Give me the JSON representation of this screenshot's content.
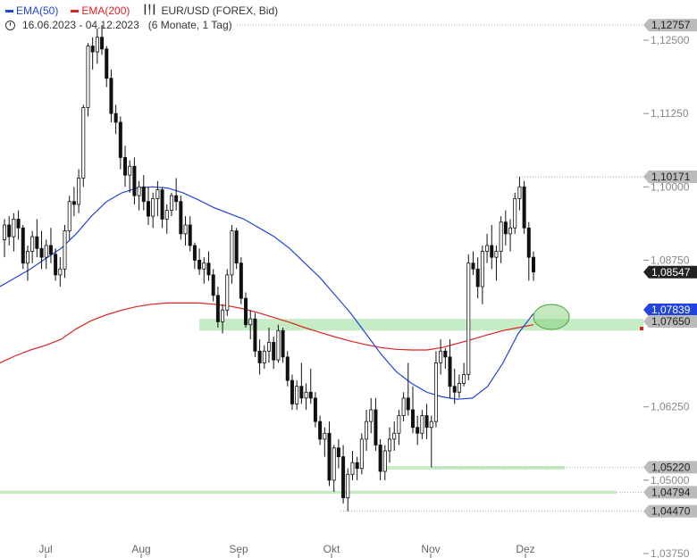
{
  "legend": {
    "ema50_label": "EMA(50)",
    "ema200_label": "EMA(200)",
    "instrument": "EUR/USD (FOREX, Bid)",
    "range": "16.06.2023 - 04.12.2023",
    "period": "(6 Monate, 1 Tag)",
    "instrument_icon": "candlestick-icon",
    "clock_icon": "clock-icon"
  },
  "colors": {
    "ema50": "#2244dd",
    "ema200": "#dd2222",
    "candle": "#111111",
    "zone": "#9ee09e",
    "ellipse": "#7ccf6e",
    "grid": "#999999"
  },
  "chart_data": {
    "type": "candlestick",
    "title": "EUR/USD (FOREX, Bid)",
    "ylim": [
      1.0375,
      1.1285
    ],
    "y_ticks": [
      "1,12500",
      "1,11250",
      "1,10000",
      "1,08750",
      "1,06250",
      "1,05000",
      "1,03750"
    ],
    "x_ticks": [
      "Jul",
      "Aug",
      "Sep",
      "Okt",
      "Nov",
      "Dez"
    ],
    "price_labels": [
      {
        "value": 1.12757,
        "text": "1,12757",
        "style": "gray"
      },
      {
        "value": 1.10171,
        "text": "1,10171",
        "style": "gray"
      },
      {
        "value": 1.08547,
        "text": "1,08547",
        "style": "dark"
      },
      {
        "value": 1.07839,
        "text": "1,07839",
        "style": "blue"
      },
      {
        "value": 1.0765,
        "text": "1,07650",
        "style": "gray"
      },
      {
        "value": 1.0522,
        "text": "1,05220",
        "style": "gray"
      },
      {
        "value": 1.04794,
        "text": "1,04794",
        "style": "gray"
      },
      {
        "value": 1.0447,
        "text": "1,04470",
        "style": "gray"
      }
    ],
    "support_zones": [
      {
        "from": 1.0755,
        "to": 1.0775
      },
      {
        "from": 1.0518,
        "to": 1.0524
      },
      {
        "from": 1.0477,
        "to": 1.0482
      }
    ],
    "ohlc": [
      [
        1.091,
        1.0945,
        1.088,
        1.0935
      ],
      [
        1.0935,
        1.095,
        1.09,
        1.0915
      ],
      [
        1.0915,
        1.0955,
        1.089,
        1.0945
      ],
      [
        1.0945,
        1.096,
        1.091,
        1.093
      ],
      [
        1.093,
        1.0935,
        1.086,
        1.087
      ],
      [
        1.087,
        1.09,
        1.084,
        1.089
      ],
      [
        1.089,
        1.0925,
        1.087,
        1.0915
      ],
      [
        1.0915,
        1.0945,
        1.088,
        1.0895
      ],
      [
        1.0895,
        1.0925,
        1.086,
        1.088
      ],
      [
        1.088,
        1.091,
        1.086,
        1.09
      ],
      [
        1.09,
        1.093,
        1.087,
        1.0885
      ],
      [
        1.0885,
        1.0895,
        1.084,
        1.085
      ],
      [
        1.085,
        1.088,
        1.083,
        1.086
      ],
      [
        1.086,
        1.0935,
        1.0845,
        1.0925
      ],
      [
        1.0925,
        1.0985,
        1.091,
        1.0975
      ],
      [
        1.0975,
        1.1,
        1.095,
        1.097
      ],
      [
        1.097,
        1.103,
        1.0955,
        1.1015
      ],
      [
        1.1015,
        1.114,
        1.1,
        1.1135
      ],
      [
        1.1135,
        1.1245,
        1.112,
        1.124
      ],
      [
        1.124,
        1.1255,
        1.12,
        1.123
      ],
      [
        1.123,
        1.127,
        1.121,
        1.1255
      ],
      [
        1.1255,
        1.1276,
        1.1225,
        1.1235
      ],
      [
        1.1235,
        1.124,
        1.117,
        1.1185
      ],
      [
        1.1185,
        1.12,
        1.111,
        1.1125
      ],
      [
        1.1125,
        1.114,
        1.109,
        1.111
      ],
      [
        1.111,
        1.112,
        1.103,
        1.105
      ],
      [
        1.105,
        1.107,
        1.1,
        1.102
      ],
      [
        1.102,
        1.1045,
        1.099,
        1.1035
      ],
      [
        1.1035,
        1.105,
        1.097,
        1.0985
      ],
      [
        1.0985,
        1.101,
        1.096,
        1.1
      ],
      [
        1.1,
        1.102,
        1.096,
        1.0975
      ],
      [
        1.0975,
        1.1,
        1.0935,
        1.095
      ],
      [
        1.095,
        1.099,
        1.093,
        1.098
      ],
      [
        1.098,
        1.101,
        1.095,
        1.0995
      ],
      [
        1.0995,
        1.1,
        1.093,
        1.0945
      ],
      [
        1.0945,
        1.097,
        1.092,
        1.096
      ],
      [
        1.096,
        1.099,
        1.095,
        1.0985
      ],
      [
        1.0985,
        1.1015,
        1.096,
        1.0975
      ],
      [
        1.0975,
        1.0985,
        1.091,
        1.092
      ],
      [
        1.092,
        1.095,
        1.09,
        1.0935
      ],
      [
        1.0935,
        1.095,
        1.089,
        1.09
      ],
      [
        1.09,
        1.0905,
        1.086,
        1.0875
      ],
      [
        1.0875,
        1.0895,
        1.085,
        1.086
      ],
      [
        1.086,
        1.088,
        1.0835,
        1.087
      ],
      [
        1.087,
        1.089,
        1.084,
        1.085
      ],
      [
        1.085,
        1.086,
        1.0805,
        1.0815
      ],
      [
        1.0815,
        1.083,
        1.076,
        1.077
      ],
      [
        1.077,
        1.08,
        1.075,
        1.079
      ],
      [
        1.079,
        1.086,
        1.078,
        1.085
      ],
      [
        1.085,
        1.0935,
        1.0835,
        1.0925
      ],
      [
        1.0925,
        1.093,
        1.086,
        1.087
      ],
      [
        1.087,
        1.088,
        1.08,
        1.081
      ],
      [
        1.081,
        1.082,
        1.076,
        1.0765
      ],
      [
        1.0765,
        1.079,
        1.074,
        1.0775
      ],
      [
        1.0775,
        1.0785,
        1.071,
        1.072
      ],
      [
        1.072,
        1.074,
        1.068,
        1.07
      ],
      [
        1.07,
        1.073,
        1.069,
        1.072
      ],
      [
        1.072,
        1.076,
        1.07,
        1.0735
      ],
      [
        1.0735,
        1.0745,
        1.069,
        1.0705
      ],
      [
        1.0705,
        1.0765,
        1.07,
        1.0755
      ],
      [
        1.0755,
        1.076,
        1.07,
        1.071
      ],
      [
        1.071,
        1.072,
        1.066,
        1.067
      ],
      [
        1.067,
        1.068,
        1.062,
        1.063
      ],
      [
        1.063,
        1.067,
        1.062,
        1.066
      ],
      [
        1.066,
        1.07,
        1.063,
        1.064
      ],
      [
        1.064,
        1.0665,
        1.062,
        1.065
      ],
      [
        1.065,
        1.069,
        1.063,
        1.064
      ],
      [
        1.064,
        1.065,
        1.059,
        1.06
      ],
      [
        1.06,
        1.061,
        1.056,
        1.057
      ],
      [
        1.057,
        1.059,
        1.054,
        1.058
      ],
      [
        1.058,
        1.06,
        1.049,
        1.05
      ],
      [
        1.05,
        1.056,
        1.048,
        1.0555
      ],
      [
        1.0555,
        1.057,
        1.052,
        1.054
      ],
      [
        1.054,
        1.056,
        1.046,
        1.047
      ],
      [
        1.047,
        1.052,
        1.0447,
        1.051
      ],
      [
        1.051,
        1.055,
        1.05,
        1.053
      ],
      [
        1.053,
        1.054,
        1.05,
        1.052
      ],
      [
        1.052,
        1.058,
        1.051,
        1.057
      ],
      [
        1.057,
        1.062,
        1.055,
        1.06
      ],
      [
        1.06,
        1.064,
        1.058,
        1.062
      ],
      [
        1.062,
        1.064,
        1.055,
        1.056
      ],
      [
        1.056,
        1.057,
        1.05,
        1.0515
      ],
      [
        1.0515,
        1.056,
        1.05,
        1.055
      ],
      [
        1.055,
        1.059,
        1.053,
        1.057
      ],
      [
        1.057,
        1.06,
        1.055,
        1.058
      ],
      [
        1.058,
        1.062,
        1.056,
        1.061
      ],
      [
        1.061,
        1.065,
        1.06,
        1.064
      ],
      [
        1.064,
        1.07,
        1.061,
        1.062
      ],
      [
        1.062,
        1.066,
        1.058,
        1.059
      ],
      [
        1.059,
        1.061,
        1.056,
        1.058
      ],
      [
        1.058,
        1.062,
        1.057,
        1.061
      ],
      [
        1.061,
        1.063,
        1.057,
        1.059
      ],
      [
        1.059,
        1.061,
        1.0522,
        1.06
      ],
      [
        1.06,
        1.072,
        1.059,
        1.07
      ],
      [
        1.07,
        1.074,
        1.068,
        1.072
      ],
      [
        1.072,
        1.0725,
        1.069,
        1.071
      ],
      [
        1.071,
        1.074,
        1.064,
        1.066
      ],
      [
        1.066,
        1.069,
        1.063,
        1.065
      ],
      [
        1.065,
        1.068,
        1.064,
        1.0665
      ],
      [
        1.0665,
        1.07,
        1.066,
        1.068
      ],
      [
        1.068,
        1.0885,
        1.067,
        1.087
      ],
      [
        1.087,
        1.089,
        1.085,
        1.086
      ],
      [
        1.086,
        1.088,
        1.081,
        1.083
      ],
      [
        1.083,
        1.09,
        1.08,
        1.089
      ],
      [
        1.089,
        1.092,
        1.087,
        1.09
      ],
      [
        1.09,
        1.0935,
        1.086,
        1.088
      ],
      [
        1.088,
        1.09,
        1.084,
        1.089
      ],
      [
        1.089,
        1.095,
        1.087,
        1.094
      ],
      [
        1.094,
        1.096,
        1.09,
        1.092
      ],
      [
        1.092,
        1.0945,
        1.089,
        1.093
      ],
      [
        1.093,
        1.099,
        1.092,
        1.098
      ],
      [
        1.098,
        1.1017,
        1.096,
        1.1
      ],
      [
        1.1,
        1.101,
        1.092,
        1.093
      ],
      [
        1.093,
        1.094,
        1.084,
        1.088
      ],
      [
        1.088,
        1.089,
        1.084,
        1.0855
      ]
    ],
    "ema50": [
      1.083,
      1.0845,
      1.086,
      1.0878,
      1.0895,
      1.092,
      1.095,
      1.0975,
      1.099,
      1.0998,
      1.1,
      1.0998,
      1.099,
      1.0978,
      1.0965,
      1.0955,
      1.0945,
      1.093,
      1.0915,
      1.0895,
      1.087,
      1.0845,
      1.0815,
      1.0785,
      1.075,
      1.0715,
      1.0685,
      1.0665,
      1.065,
      1.0642,
      1.0638,
      1.064,
      1.066,
      1.07,
      1.075,
      1.0784
    ],
    "ema200": [
      1.07,
      1.0712,
      1.0722,
      1.073,
      1.074,
      1.0758,
      1.0772,
      1.0782,
      1.079,
      1.0796,
      1.08,
      1.0802,
      1.0802,
      1.0802,
      1.08,
      1.0797,
      1.0792,
      1.0785,
      1.0777,
      1.0769,
      1.076,
      1.0752,
      1.0744,
      1.0737,
      1.0731,
      1.0726,
      1.0723,
      1.0722,
      1.0722,
      1.0726,
      1.0733,
      1.074,
      1.0748,
      1.0755,
      1.076,
      1.0765
    ]
  }
}
